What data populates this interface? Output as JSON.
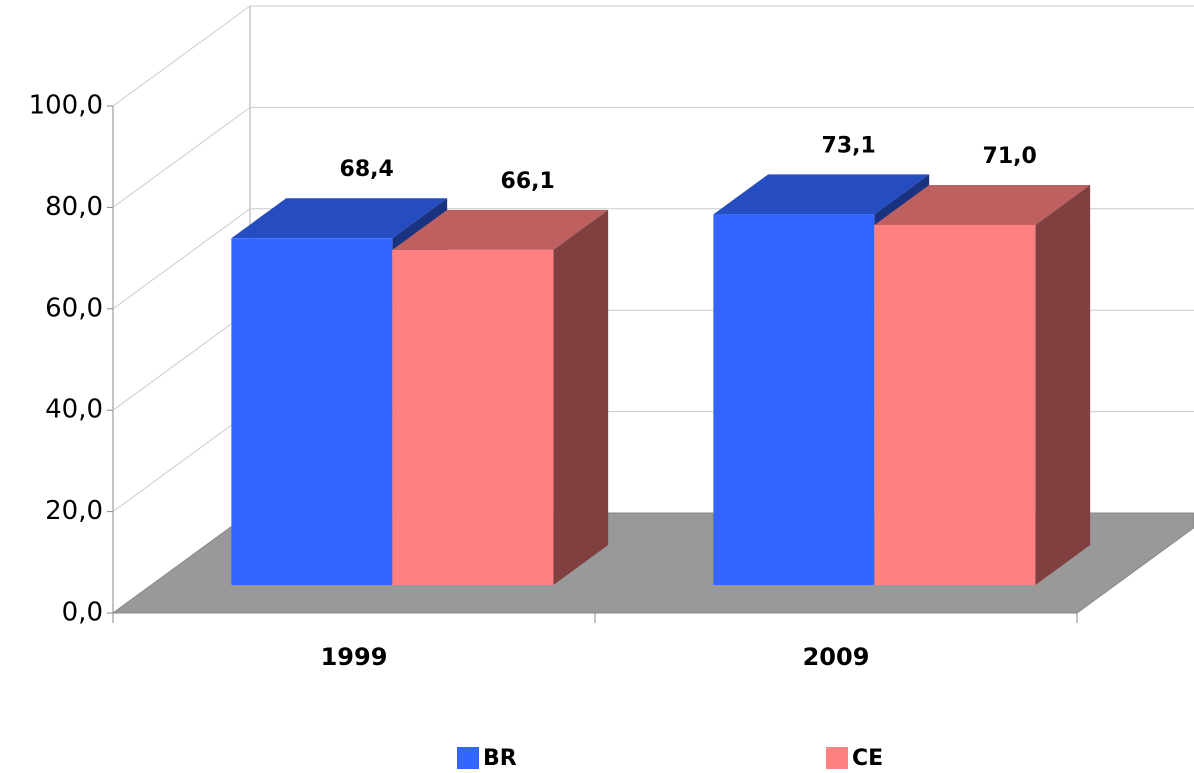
{
  "chart_data": {
    "type": "bar3d",
    "categories": [
      "1999",
      "2009"
    ],
    "series": [
      {
        "name": "BR",
        "color": "#3366ff",
        "values": [
          68.4,
          73.1
        ],
        "value_labels": [
          "68,4",
          "73,1"
        ]
      },
      {
        "name": "CE",
        "color": "#ff8080",
        "values": [
          66.1,
          71.0
        ],
        "value_labels": [
          "66,1",
          "71,0"
        ]
      }
    ],
    "ylim": [
      0,
      100
    ],
    "yticks": [
      {
        "value": 0,
        "label": "0,0"
      },
      {
        "value": 20,
        "label": "20,0"
      },
      {
        "value": 40,
        "label": "40,0"
      },
      {
        "value": 60,
        "label": "60,0"
      },
      {
        "value": 80,
        "label": "80,0"
      },
      {
        "value": 100,
        "label": "100,0"
      }
    ],
    "grid": true
  }
}
